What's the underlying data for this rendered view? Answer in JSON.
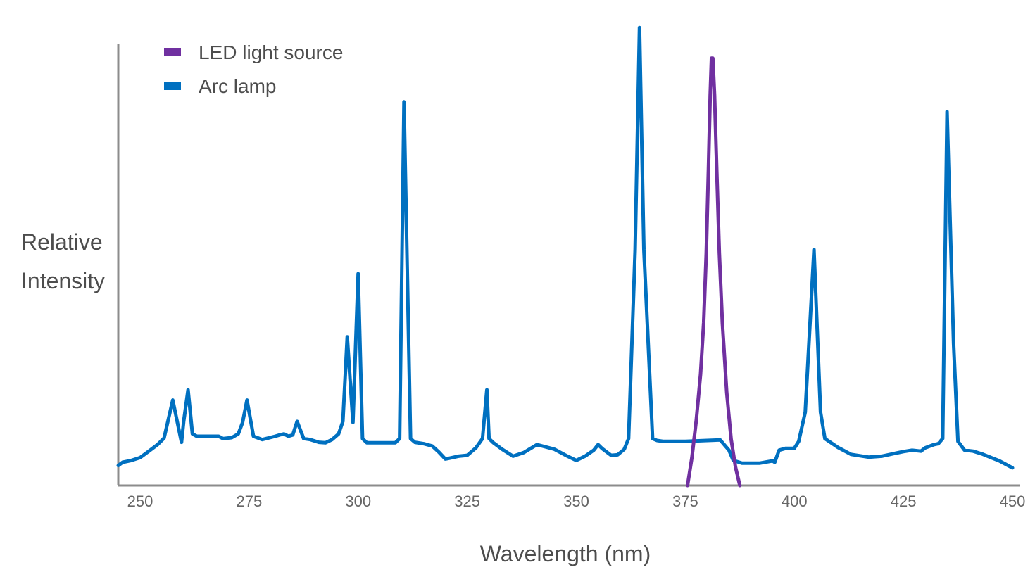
{
  "chart_data": {
    "type": "line",
    "title": "",
    "xlabel": "Wavelength (nm)",
    "ylabel_lines": [
      "Relative",
      "Intensity"
    ],
    "xlim": [
      245,
      450
    ],
    "ylim": [
      0,
      100
    ],
    "x_ticks": [
      250,
      275,
      300,
      325,
      350,
      375,
      400,
      425,
      450
    ],
    "y_ticks_shown": false,
    "grid": false,
    "legend_position": "top-left",
    "colors": {
      "axis": "#8c8c8c",
      "tick_text": "#666666",
      "title_text": "#4d4d4d",
      "led": "#7030a0",
      "arc": "#0070c0"
    },
    "legend": [
      {
        "name": "LED light source",
        "color": "#7030a0"
      },
      {
        "name": "Arc lamp",
        "color": "#0070c0"
      }
    ],
    "series": [
      {
        "name": "Arc lamp",
        "color": "#0070c0",
        "x": [
          245,
          246,
          248,
          250,
          252,
          254,
          255.5,
          257.5,
          259.5,
          260,
          261,
          262,
          263,
          265,
          268,
          269,
          271,
          272.5,
          273.5,
          274.5,
          276,
          278,
          281,
          282,
          283,
          284,
          285,
          286,
          287.5,
          289,
          291,
          292.5,
          294,
          295.5,
          296.5,
          297.5,
          298.8,
          300,
          301,
          302,
          304,
          306,
          307,
          308.5,
          309.5,
          310.5,
          312,
          313,
          315,
          317,
          318.5,
          320,
          323,
          325,
          327,
          328.5,
          329.5,
          330,
          331,
          333,
          335.5,
          338,
          341,
          345,
          348,
          350,
          352,
          354,
          355,
          356,
          358,
          359.5,
          361,
          362,
          363.5,
          364.5,
          365.5,
          367.5,
          368.5,
          370,
          375,
          380,
          383,
          385,
          386,
          388,
          392,
          395,
          395.5,
          396.5,
          398,
          400,
          401,
          402.5,
          404.5,
          406,
          407,
          410,
          413,
          417,
          420,
          425,
          427,
          429,
          430,
          432,
          433,
          434,
          435,
          436.5,
          437.5,
          439,
          441,
          443,
          447,
          450
        ],
        "values": [
          4.3,
          5.0,
          5.4,
          6.0,
          7.4,
          8.8,
          10.2,
          18.4,
          9.3,
          13.8,
          20.6,
          11.1,
          10.6,
          10.6,
          10.6,
          10.1,
          10.3,
          11.1,
          13.6,
          18.4,
          10.6,
          9.9,
          10.6,
          10.9,
          11.1,
          10.6,
          10.9,
          13.8,
          10.1,
          9.9,
          9.3,
          9.2,
          9.9,
          11.1,
          13.8,
          32.0,
          13.6,
          45.6,
          10.1,
          9.2,
          9.2,
          9.2,
          9.2,
          9.2,
          10.1,
          82.6,
          10.1,
          9.3,
          9.0,
          8.5,
          7.2,
          5.7,
          6.3,
          6.5,
          8.1,
          10.1,
          20.6,
          10.1,
          9.2,
          7.8,
          6.3,
          7.1,
          8.8,
          7.8,
          6.3,
          5.4,
          6.3,
          7.6,
          8.8,
          7.9,
          6.5,
          6.6,
          7.8,
          10.1,
          50.8,
          98.6,
          50.8,
          10.1,
          9.7,
          9.5,
          9.5,
          9.7,
          9.8,
          7.6,
          5.4,
          4.8,
          4.8,
          5.3,
          5.0,
          7.6,
          8.0,
          8.0,
          9.5,
          15.8,
          50.8,
          15.8,
          10.1,
          8.2,
          6.7,
          6.1,
          6.3,
          7.3,
          7.6,
          7.4,
          8.1,
          8.8,
          9.0,
          10.1,
          80.5,
          30.5,
          9.5,
          7.6,
          7.4,
          6.8,
          5.3,
          3.8
        ]
      },
      {
        "name": "LED light source",
        "color": "#7030a0",
        "x": [
          375.5,
          376.5,
          377.5,
          378.5,
          379.2,
          379.8,
          380.3,
          380.7,
          381.0,
          381.3,
          381.7,
          382.2,
          382.8,
          383.5,
          384.5,
          385.5,
          386.5,
          387.5
        ],
        "values": [
          0,
          6.0,
          14.0,
          24.0,
          35.0,
          50.0,
          68.0,
          84.0,
          92.0,
          92.0,
          84.0,
          68.0,
          50.0,
          35.0,
          20.0,
          10.0,
          4.0,
          0
        ]
      }
    ]
  }
}
